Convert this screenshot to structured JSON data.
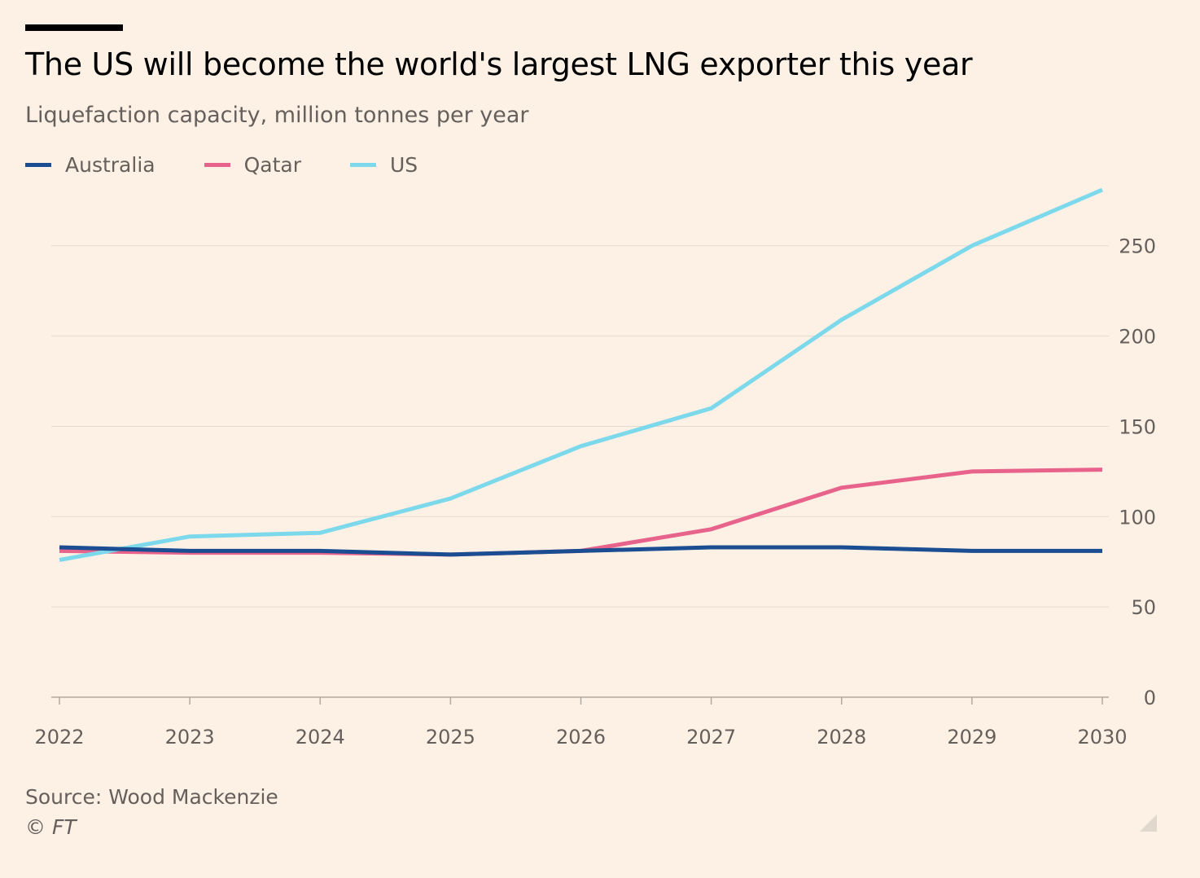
{
  "chart_data": {
    "type": "line",
    "title": "The US will become the world's largest LNG exporter this year",
    "subtitle": "Liquefaction capacity, million tonnes per year",
    "x": [
      "2022",
      "2023",
      "2024",
      "2025",
      "2026",
      "2027",
      "2028",
      "2029",
      "2030"
    ],
    "series": [
      {
        "name": "Australia",
        "color": "#1A4D91",
        "values": [
          83,
          81,
          81,
          79,
          81,
          83,
          83,
          81,
          81
        ]
      },
      {
        "name": "Qatar",
        "color": "#E8638B",
        "values": [
          81,
          80,
          80,
          79,
          81,
          93,
          116,
          125,
          126
        ]
      },
      {
        "name": "US",
        "color": "#7CD8EB",
        "values": [
          76,
          89,
          91,
          110,
          139,
          160,
          209,
          250,
          281
        ]
      }
    ],
    "ylim": [
      0,
      281
    ],
    "yticks": [
      0,
      50,
      100,
      150,
      200,
      250
    ],
    "grid": true,
    "y_axis_side": "right",
    "legend_position": "top-left"
  },
  "source": "Source: Wood Mackenzie",
  "credit": "© FT"
}
